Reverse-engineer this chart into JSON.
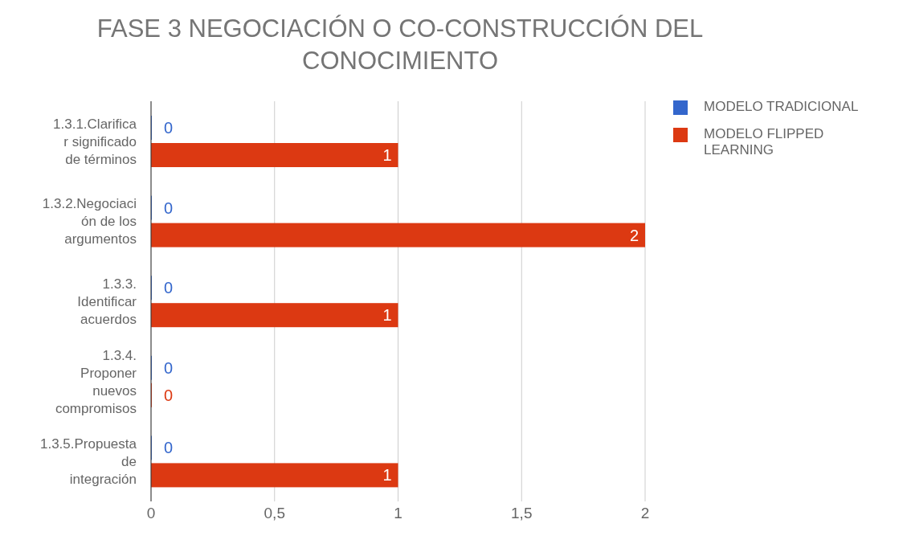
{
  "chart_data": {
    "type": "bar",
    "orientation": "horizontal",
    "title": "FASE 3 NEGOCIACIÓN O CO-CONSTRUCCIÓN DEL CONOCIMIENTO",
    "categories": [
      "1.3.1.Clarificar significado de términos",
      "1.3.2.Negociación de los argumentos",
      "1.3.3. Identificar acuerdos",
      "1.3.4. Proponer nuevos compromisos",
      "1.3.5.Propuesta de integración"
    ],
    "series": [
      {
        "name": "MODELO TRADICIONAL",
        "color": "#3366cc",
        "values": [
          0,
          0,
          0,
          0,
          0
        ]
      },
      {
        "name": "MODELO FLIPPED LEARNING",
        "color": "#dc3912",
        "values": [
          1,
          2,
          1,
          0,
          1
        ]
      }
    ],
    "xlim": [
      0,
      2
    ],
    "xticks": [
      0,
      {
        "value": 0.5,
        "label": "0,5"
      },
      1,
      {
        "value": 1.5,
        "label": "1,5"
      },
      2
    ],
    "grid": "x",
    "legend": "right",
    "data_labels": true
  }
}
